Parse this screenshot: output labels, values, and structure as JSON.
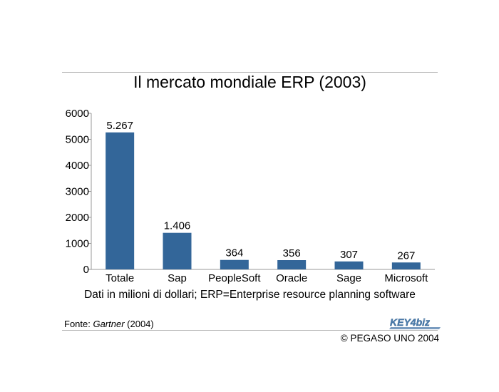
{
  "title": "Il mercato mondiale ERP (2003)",
  "note": "Dati in milioni di dollari; ERP=Enterprise resource planning software",
  "source": {
    "label": "Fonte: ",
    "name": "Gartner",
    "year": " (2004)"
  },
  "logo": {
    "text": "KEY4biz"
  },
  "copyright": "© PEGASO UNO 2004",
  "colors": {
    "bar": "#336699",
    "axis": "#999999",
    "rule": "#b8b8b8"
  },
  "chart_data": {
    "type": "bar",
    "title": "Il mercato mondiale ERP (2003)",
    "xlabel": "",
    "ylabel": "",
    "categories": [
      "Totale",
      "Sap",
      "PeopleSoft",
      "Oracle",
      "Sage",
      "Microsoft"
    ],
    "values": [
      5267,
      1406,
      364,
      356,
      307,
      267
    ],
    "data_labels": [
      "5.267",
      "1.406",
      "364",
      "356",
      "307",
      "267"
    ],
    "y_ticks": [
      0,
      1000,
      2000,
      3000,
      4000,
      5000,
      6000
    ],
    "ylim": [
      0,
      6000
    ],
    "grid": false,
    "legend": "none"
  }
}
